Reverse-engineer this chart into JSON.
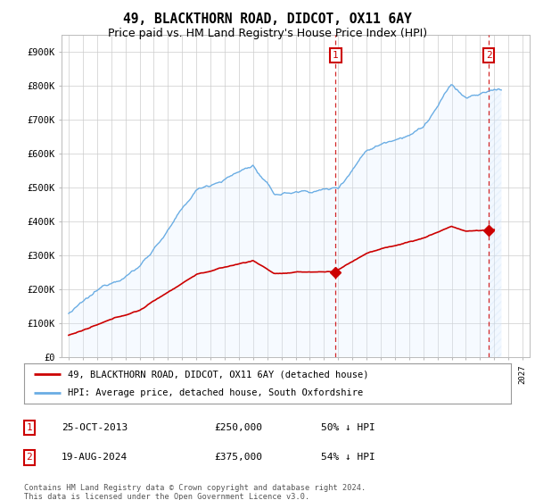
{
  "title": "49, BLACKTHORN ROAD, DIDCOT, OX11 6AY",
  "subtitle": "Price paid vs. HM Land Registry's House Price Index (HPI)",
  "ylim": [
    0,
    950000
  ],
  "yticks": [
    0,
    100000,
    200000,
    300000,
    400000,
    500000,
    600000,
    700000,
    800000,
    900000
  ],
  "ytick_labels": [
    "£0",
    "£100K",
    "£200K",
    "£300K",
    "£400K",
    "£500K",
    "£600K",
    "£700K",
    "£800K",
    "£900K"
  ],
  "hpi_color": "#6aade4",
  "hpi_fill_color": "#ddeeff",
  "price_color": "#cc0000",
  "annotation_box_color": "#cc0000",
  "purchase1_year": 2013.82,
  "purchase1_price": 250000,
  "purchase2_year": 2024.63,
  "purchase2_price": 375000,
  "legend_property_label": "49, BLACKTHORN ROAD, DIDCOT, OX11 6AY (detached house)",
  "legend_hpi_label": "HPI: Average price, detached house, South Oxfordshire",
  "table_1_date": "25-OCT-2013",
  "table_1_price": "£250,000",
  "table_1_hpi": "50% ↓ HPI",
  "table_2_date": "19-AUG-2024",
  "table_2_price": "£375,000",
  "table_2_hpi": "54% ↓ HPI",
  "footer": "Contains HM Land Registry data © Crown copyright and database right 2024.\nThis data is licensed under the Open Government Licence v3.0.",
  "background_color": "#ffffff",
  "grid_color": "#cccccc",
  "title_fontsize": 10.5,
  "subtitle_fontsize": 9
}
